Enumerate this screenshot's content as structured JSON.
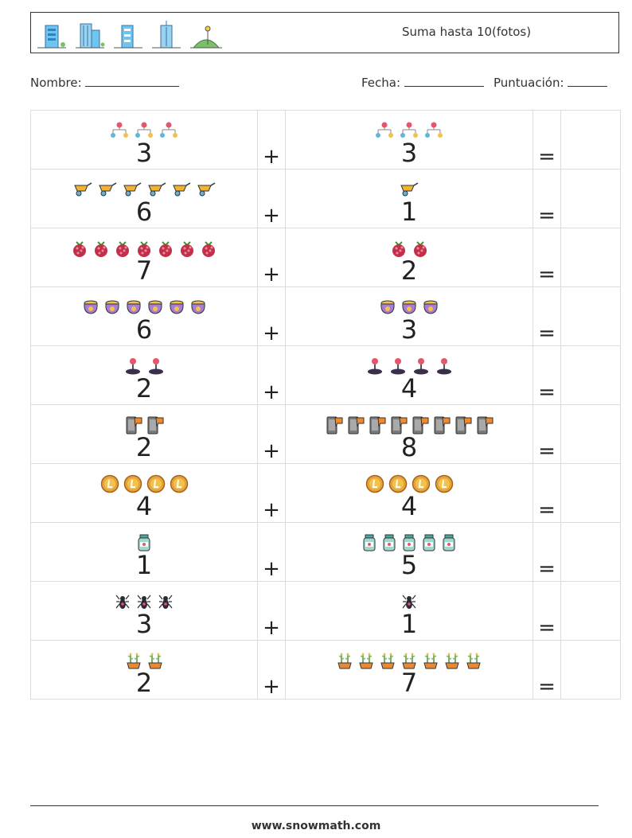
{
  "header": {
    "title": "Suma hasta 10(fotos)",
    "icons": [
      "building-icon",
      "office-tower-icon",
      "apartment-icon",
      "skyscraper-icon",
      "park-icon"
    ]
  },
  "form": {
    "name_label": "Nombre:",
    "date_label": "Fecha:",
    "score_label": "Puntuación:"
  },
  "problems": [
    {
      "a": {
        "n": "3",
        "icon": "network-icon"
      },
      "b": {
        "n": "3",
        "icon": "network-icon"
      }
    },
    {
      "a": {
        "n": "6",
        "icon": "wheelbarrow-icon"
      },
      "b": {
        "n": "1",
        "icon": "wheelbarrow-icon"
      }
    },
    {
      "a": {
        "n": "7",
        "icon": "raspberry-icon"
      },
      "b": {
        "n": "2",
        "icon": "raspberry-icon"
      }
    },
    {
      "a": {
        "n": "6",
        "icon": "pot-of-gold-icon"
      },
      "b": {
        "n": "3",
        "icon": "pot-of-gold-icon"
      }
    },
    {
      "a": {
        "n": "2",
        "icon": "joystick-icon"
      },
      "b": {
        "n": "4",
        "icon": "joystick-icon"
      }
    },
    {
      "a": {
        "n": "2",
        "icon": "phone-btc-icon"
      },
      "b": {
        "n": "8",
        "icon": "phone-btc-icon"
      }
    },
    {
      "a": {
        "n": "4",
        "icon": "litecoin-icon"
      },
      "b": {
        "n": "4",
        "icon": "litecoin-icon"
      }
    },
    {
      "a": {
        "n": "1",
        "icon": "jar-icon"
      },
      "b": {
        "n": "5",
        "icon": "jar-icon"
      }
    },
    {
      "a": {
        "n": "3",
        "icon": "spider-icon"
      },
      "b": {
        "n": "1",
        "icon": "spider-icon"
      }
    },
    {
      "a": {
        "n": "2",
        "icon": "plant-pot-icon"
      },
      "b": {
        "n": "7",
        "icon": "plant-pot-icon"
      }
    }
  ],
  "operators": {
    "plus": "+",
    "equals": "="
  },
  "footer": {
    "url": "www.snowmath.com"
  }
}
